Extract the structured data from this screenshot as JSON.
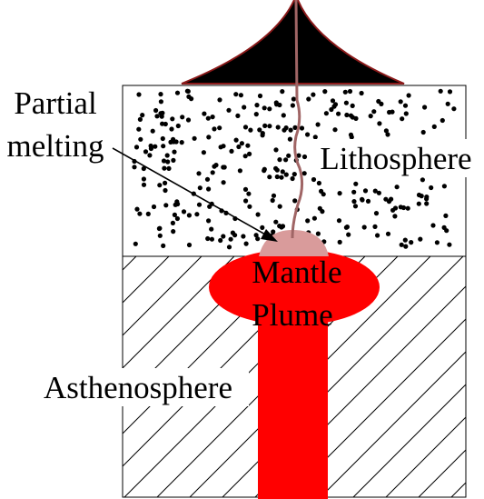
{
  "diagram": {
    "labels": {
      "partial_line1": "Partial",
      "partial_line2": "melting",
      "lithosphere": "Lithosphere",
      "mantle_line1": "Mantle",
      "mantle_line2": "Plume",
      "asthenosphere": "Asthenosphere"
    },
    "colors": {
      "volcano": "#000000",
      "volcano_outline": "#8b1a1a",
      "conduit": "#a06565",
      "plume": "#ff0000",
      "melt_zone": "#d99b9b",
      "hatch": "#000000",
      "outline": "#000000",
      "background": "#ffffff"
    }
  }
}
